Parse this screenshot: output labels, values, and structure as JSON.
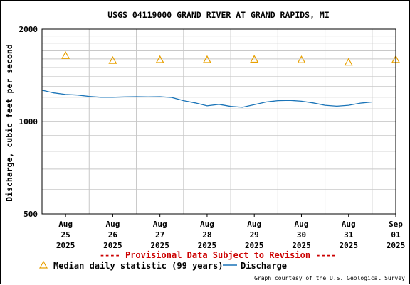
{
  "chart_data": {
    "type": "line",
    "title": "USGS 04119000 GRAND RIVER AT GRAND RAPIDS, MI",
    "ylabel": "Discharge, cubic feet per second",
    "xlabel": "",
    "y_scale": "log",
    "ylim": [
      500,
      2000
    ],
    "y_ticks": [
      {
        "value": 500,
        "label": "500"
      },
      {
        "value": 1000,
        "label": "1000"
      },
      {
        "value": 2000,
        "label": "2000"
      }
    ],
    "x_range": [
      "2025-08-25T00:00",
      "2025-09-01T12:00"
    ],
    "x_ticks": [
      {
        "date": "2025-08-25T12:00",
        "lines": [
          "Aug",
          "25",
          "2025"
        ]
      },
      {
        "date": "2025-08-26T12:00",
        "lines": [
          "Aug",
          "26",
          "2025"
        ]
      },
      {
        "date": "2025-08-27T12:00",
        "lines": [
          "Aug",
          "27",
          "2025"
        ]
      },
      {
        "date": "2025-08-28T12:00",
        "lines": [
          "Aug",
          "28",
          "2025"
        ]
      },
      {
        "date": "2025-08-29T12:00",
        "lines": [
          "Aug",
          "29",
          "2025"
        ]
      },
      {
        "date": "2025-08-30T12:00",
        "lines": [
          "Aug",
          "30",
          "2025"
        ]
      },
      {
        "date": "2025-08-31T12:00",
        "lines": [
          "Aug",
          "31",
          "2025"
        ]
      },
      {
        "date": "2025-09-01T12:00",
        "lines": [
          "Sep",
          "01",
          "2025"
        ]
      }
    ],
    "grid": true,
    "series": [
      {
        "name": "Discharge",
        "color": "#1a74b8",
        "marker": "line",
        "x": [
          "2025-08-25T00:00",
          "2025-08-25T06:00",
          "2025-08-25T12:00",
          "2025-08-25T18:00",
          "2025-08-26T00:00",
          "2025-08-26T06:00",
          "2025-08-26T12:00",
          "2025-08-26T18:00",
          "2025-08-27T00:00",
          "2025-08-27T06:00",
          "2025-08-27T12:00",
          "2025-08-27T18:00",
          "2025-08-28T00:00",
          "2025-08-28T06:00",
          "2025-08-28T12:00",
          "2025-08-28T18:00",
          "2025-08-29T00:00",
          "2025-08-29T06:00",
          "2025-08-29T12:00",
          "2025-08-29T18:00",
          "2025-08-30T00:00",
          "2025-08-30T06:00",
          "2025-08-30T12:00",
          "2025-08-30T18:00",
          "2025-08-31T00:00",
          "2025-08-31T06:00",
          "2025-08-31T12:00",
          "2025-08-31T18:00",
          "2025-09-01T00:00"
        ],
        "y": [
          1265,
          1240,
          1225,
          1220,
          1208,
          1200,
          1200,
          1203,
          1205,
          1203,
          1205,
          1198,
          1170,
          1150,
          1125,
          1138,
          1120,
          1113,
          1135,
          1158,
          1170,
          1172,
          1165,
          1150,
          1130,
          1122,
          1130,
          1148,
          1158
        ]
      },
      {
        "name": "Median daily statistic (99 years)",
        "color": "#e8a000",
        "marker": "triangle",
        "x": [
          "2025-08-25T12:00",
          "2025-08-26T12:00",
          "2025-08-27T12:00",
          "2025-08-28T12:00",
          "2025-08-29T12:00",
          "2025-08-30T12:00",
          "2025-08-31T12:00",
          "2025-09-01T12:00"
        ],
        "y": [
          1640,
          1580,
          1590,
          1590,
          1595,
          1588,
          1560,
          1592
        ]
      }
    ]
  },
  "notice": "---- Provisional Data Subject to Revision ----",
  "courtesy": "Graph courtesy of the U.S. Geological Survey",
  "colors": {
    "notice": "#cc0000",
    "axis": "#000000",
    "grid": "#c8c8c8"
  }
}
